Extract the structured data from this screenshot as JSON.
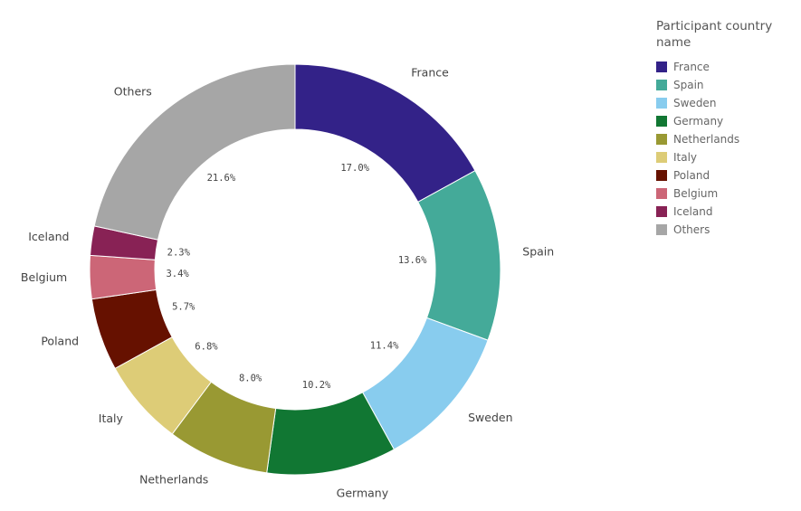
{
  "chart_data": {
    "type": "pie",
    "legend_title": "Participant country name",
    "categories": [
      "France",
      "Spain",
      "Sweden",
      "Germany",
      "Netherlands",
      "Italy",
      "Poland",
      "Belgium",
      "Iceland",
      "Others"
    ],
    "values": [
      17.0,
      13.6,
      11.4,
      10.2,
      8.0,
      6.8,
      5.7,
      3.4,
      2.3,
      21.6
    ],
    "value_labels": [
      "17.0%",
      "13.6%",
      "11.4%",
      "10.2%",
      "8.0%",
      "6.8%",
      "5.7%",
      "3.4%",
      "2.3%",
      "21.6%"
    ],
    "colors": [
      "#332288",
      "#44aa99",
      "#88ccee",
      "#117733",
      "#999933",
      "#ddcc77",
      "#661100",
      "#cc6677",
      "#882255",
      "#a6a6a6"
    ],
    "legend": "right"
  }
}
